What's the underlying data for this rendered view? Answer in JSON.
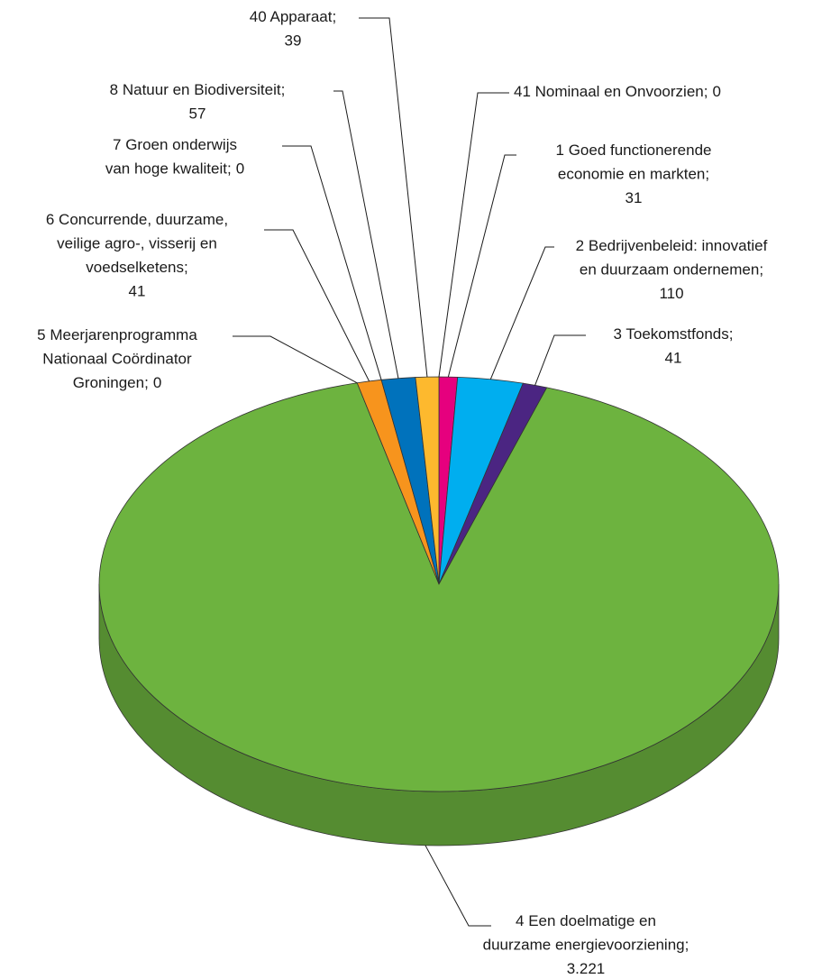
{
  "chart_data": {
    "type": "pie3d",
    "categories": [
      "41 Nominaal en Onvoorzien;",
      "1 Goed functionerende\neconomie en markten;",
      "2 Bedrijvenbeleid: innovatief\nen duurzaam ondernemen;",
      "3 Toekomstfonds;",
      "4 Een doelmatige en\nduurzame energievoorziening;",
      "5 Meerjarenprogramma\nNationaal Coördinator\nGroningen;",
      "6 Concurrende, duurzame,\nveilige agro-, visserij en\nvoedselketens;",
      "7 Groen onderwijs\nvan hoge kwaliteit;",
      "8 Natuur en Biodiversiteit;",
      "40 Apparaat;"
    ],
    "values": [
      0,
      31,
      110,
      41,
      3221,
      0,
      41,
      0,
      57,
      39
    ],
    "value_labels": [
      "0",
      "31",
      "110",
      "41",
      "3.221",
      "0",
      "41",
      "0",
      "57",
      "39"
    ],
    "colors": [
      null,
      "#e6007e",
      "#00aeef",
      "#4b2582",
      "#6db33f",
      null,
      "#f7941d",
      null,
      "#0072bc",
      "#fdb92e"
    ]
  }
}
